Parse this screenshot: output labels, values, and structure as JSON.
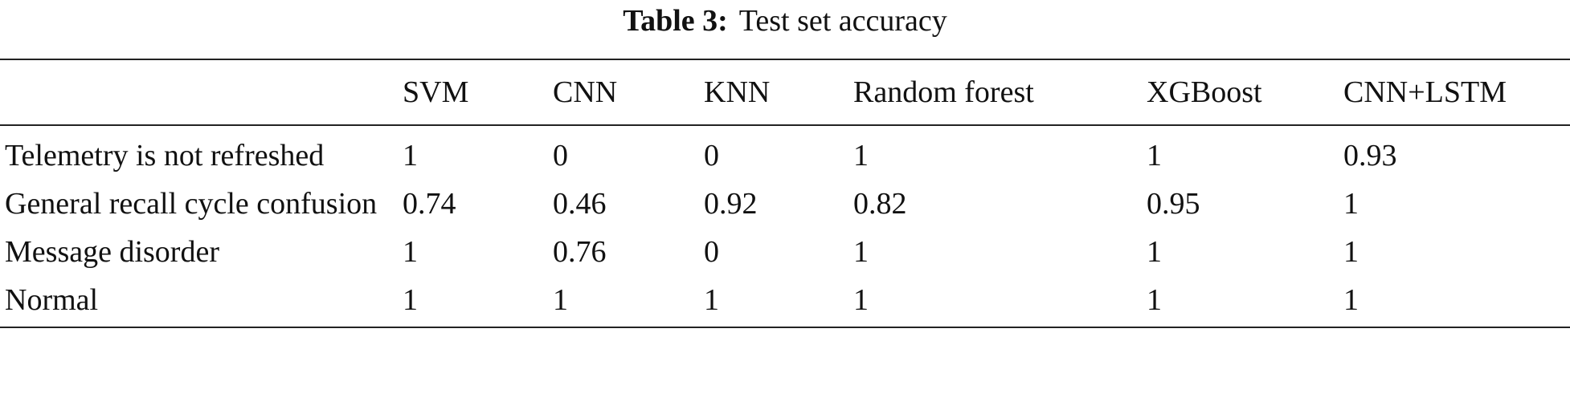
{
  "caption": {
    "label": "Table 3:",
    "title": "Test set accuracy"
  },
  "table": {
    "columns": [
      "SVM",
      "CNN",
      "KNN",
      "Random forest",
      "XGBoost",
      "CNN+LSTM"
    ],
    "rows": [
      {
        "label": "Telemetry is not refreshed",
        "values": [
          1,
          0,
          0,
          1,
          1,
          0.93
        ]
      },
      {
        "label": "General recall cycle confusion",
        "values": [
          0.74,
          0.46,
          0.92,
          0.82,
          0.95,
          1
        ]
      },
      {
        "label": "Message disorder",
        "values": [
          1,
          0.76,
          0,
          1,
          1,
          1
        ]
      },
      {
        "label": "Normal",
        "values": [
          1,
          1,
          1,
          1,
          1,
          1
        ]
      }
    ]
  }
}
